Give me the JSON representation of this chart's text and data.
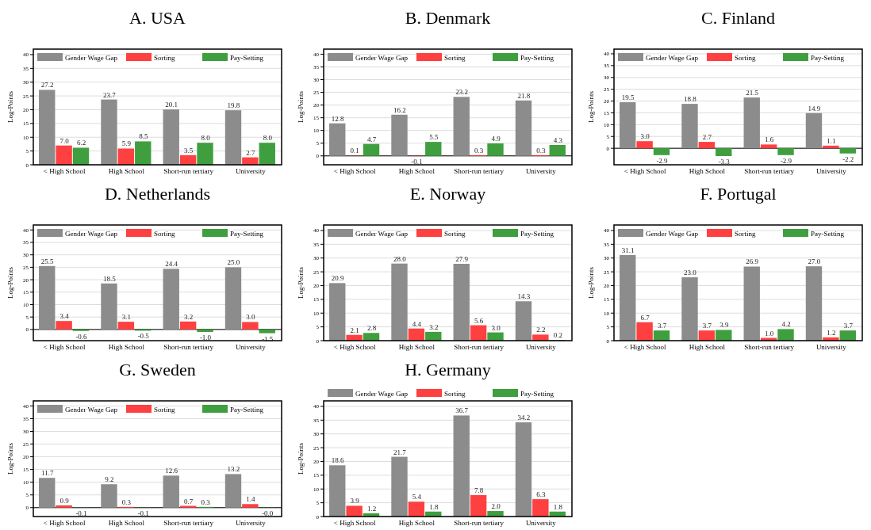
{
  "chart_data": [
    {
      "type": "bar",
      "title": "A. USA",
      "ylabel": "Log-Points",
      "categories": [
        "< High School",
        "High School",
        "Short-run tertiary",
        "University"
      ],
      "ylim": [
        0,
        42
      ],
      "yticks": [
        0,
        5,
        10,
        15,
        20,
        25,
        30,
        35,
        40
      ],
      "grid": "y",
      "legend": "top left",
      "series": [
        {
          "name": "Gender Wage Gap",
          "color": "#8c8c8c",
          "values": [
            27.2,
            23.7,
            20.1,
            19.8
          ],
          "value_labels": [
            "27.2",
            "23.7",
            "20.1",
            "19.8"
          ]
        },
        {
          "name": "Sorting",
          "color": "#ff4040",
          "values": [
            7.0,
            5.9,
            3.5,
            2.7
          ],
          "value_labels": [
            "7.0",
            "5.9",
            "3.5",
            "2.7"
          ]
        },
        {
          "name": "Pay-Setting",
          "color": "#3f9f3f",
          "values": [
            6.2,
            8.5,
            8.0,
            8.0
          ],
          "value_labels": [
            "6.2",
            "8.5",
            "8.0",
            "8.0"
          ]
        }
      ]
    },
    {
      "type": "bar",
      "title": "B. Denmark",
      "ylabel": "Log-Points",
      "categories": [
        "< High School",
        "High School",
        "Short-run tertiary",
        "University"
      ],
      "ylim": [
        -3.5,
        42
      ],
      "yticks": [
        0,
        5,
        10,
        15,
        20,
        25,
        30,
        35,
        40
      ],
      "grid": "y",
      "legend": "top left",
      "series": [
        {
          "name": "Gender Wage Gap",
          "color": "#8c8c8c",
          "values": [
            12.8,
            16.2,
            23.2,
            21.8
          ],
          "value_labels": [
            "12.8",
            "16.2",
            "23.2",
            "21.8"
          ]
        },
        {
          "name": "Sorting",
          "color": "#ff4040",
          "values": [
            0.1,
            -0.1,
            0.3,
            0.3
          ],
          "value_labels": [
            "0.1",
            "-0.1",
            "0.3",
            "0.3"
          ]
        },
        {
          "name": "Pay-Setting",
          "color": "#3f9f3f",
          "values": [
            4.7,
            5.5,
            4.9,
            4.3
          ],
          "value_labels": [
            "4.7",
            "5.5",
            "4.9",
            "4.3"
          ]
        }
      ]
    },
    {
      "type": "bar",
      "title": "C. Finland",
      "ylabel": "Log-Points",
      "categories": [
        "< High School",
        "High School",
        "Short-run tertiary",
        "University"
      ],
      "ylim": [
        -7,
        42
      ],
      "yticks": [
        0,
        5,
        10,
        15,
        20,
        25,
        30,
        35,
        40
      ],
      "grid": "y",
      "legend": "top left",
      "series": [
        {
          "name": "Gender Wage Gap",
          "color": "#8c8c8c",
          "values": [
            19.5,
            18.8,
            21.5,
            14.9
          ],
          "value_labels": [
            "19.5",
            "18.8",
            "21.5",
            "14.9"
          ]
        },
        {
          "name": "Sorting",
          "color": "#ff4040",
          "values": [
            3.0,
            2.7,
            1.6,
            1.1
          ],
          "value_labels": [
            "3.0",
            "2.7",
            "1.6",
            "1.1"
          ]
        },
        {
          "name": "Pay-Setting",
          "color": "#3f9f3f",
          "values": [
            -2.9,
            -3.3,
            -2.9,
            -2.2
          ],
          "value_labels": [
            "-2.9",
            "-3.3",
            "-2.9",
            "-2.2"
          ]
        }
      ]
    },
    {
      "type": "bar",
      "title": "D. Netherlands",
      "ylabel": "Log-Points",
      "categories": [
        "< High School",
        "High School",
        "Short-run tertiary",
        "University"
      ],
      "ylim": [
        -4.5,
        42
      ],
      "yticks": [
        0,
        5,
        10,
        15,
        20,
        25,
        30,
        35,
        40
      ],
      "grid": "y",
      "legend": "top left",
      "series": [
        {
          "name": "Gender Wage Gap",
          "color": "#8c8c8c",
          "values": [
            25.5,
            18.5,
            24.4,
            25.0
          ],
          "value_labels": [
            "25.5",
            "18.5",
            "24.4",
            "25.0"
          ]
        },
        {
          "name": "Sorting",
          "color": "#ff4040",
          "values": [
            3.4,
            3.1,
            3.2,
            3.0
          ],
          "value_labels": [
            "3.4",
            "3.1",
            "3.2",
            "3.0"
          ]
        },
        {
          "name": "Pay-Setting",
          "color": "#3f9f3f",
          "values": [
            -0.6,
            -0.5,
            -1.0,
            -1.5
          ],
          "value_labels": [
            "-0.6",
            "-0.5",
            "-1.0",
            "-1.5"
          ]
        }
      ]
    },
    {
      "type": "bar",
      "title": "E. Norway",
      "ylabel": "Log-Points",
      "categories": [
        "< High School",
        "High School",
        "Short-run tertiary",
        "University"
      ],
      "ylim": [
        0,
        42
      ],
      "yticks": [
        0,
        5,
        10,
        15,
        20,
        25,
        30,
        35,
        40
      ],
      "grid": "y",
      "legend": "top left",
      "series": [
        {
          "name": "Gender Wage Gap",
          "color": "#8c8c8c",
          "values": [
            20.9,
            28.0,
            27.9,
            14.3
          ],
          "value_labels": [
            "20.9",
            "28.0",
            "27.9",
            "14.3"
          ]
        },
        {
          "name": "Sorting",
          "color": "#ff4040",
          "values": [
            2.1,
            4.4,
            5.6,
            2.2
          ],
          "value_labels": [
            "2.1",
            "4.4",
            "5.6",
            "2.2"
          ]
        },
        {
          "name": "Pay-Setting",
          "color": "#3f9f3f",
          "values": [
            2.8,
            3.2,
            3.0,
            0.2
          ],
          "value_labels": [
            "2.8",
            "3.2",
            "3.0",
            "0.2"
          ]
        }
      ]
    },
    {
      "type": "bar",
      "title": "F. Portugal",
      "ylabel": "Log-Points",
      "categories": [
        "< High School",
        "High School",
        "Short-run tertiary",
        "University"
      ],
      "ylim": [
        0,
        42
      ],
      "yticks": [
        0,
        5,
        10,
        15,
        20,
        25,
        30,
        35,
        40
      ],
      "grid": "y",
      "legend": "top left",
      "series": [
        {
          "name": "Gender Wage Gap",
          "color": "#8c8c8c",
          "values": [
            31.1,
            23.0,
            26.9,
            27.0
          ],
          "value_labels": [
            "31.1",
            "23.0",
            "26.9",
            "27.0"
          ]
        },
        {
          "name": "Sorting",
          "color": "#ff4040",
          "values": [
            6.7,
            3.7,
            1.0,
            1.2
          ],
          "value_labels": [
            "6.7",
            "3.7",
            "1.0",
            "1.2"
          ]
        },
        {
          "name": "Pay-Setting",
          "color": "#3f9f3f",
          "values": [
            3.7,
            3.9,
            4.2,
            3.7
          ],
          "value_labels": [
            "3.7",
            "3.9",
            "4.2",
            "3.7"
          ]
        }
      ]
    },
    {
      "type": "bar",
      "title": "G. Sweden",
      "ylabel": "Log-Points",
      "categories": [
        "< High School",
        "High School",
        "Short-run tertiary",
        "University"
      ],
      "ylim": [
        -3.5,
        42
      ],
      "yticks": [
        0,
        5,
        10,
        15,
        20,
        25,
        30,
        35,
        40
      ],
      "grid": "y",
      "legend": "top left",
      "series": [
        {
          "name": "Gender Wage Gap",
          "color": "#8c8c8c",
          "values": [
            11.7,
            9.2,
            12.6,
            13.2
          ],
          "value_labels": [
            "11.7",
            "9.2",
            "12.6",
            "13.2"
          ]
        },
        {
          "name": "Sorting",
          "color": "#ff4040",
          "values": [
            0.9,
            0.3,
            0.7,
            1.4
          ],
          "value_labels": [
            "0.9",
            "0.3",
            "0.7",
            "1.4"
          ]
        },
        {
          "name": "Pay-Setting",
          "color": "#3f9f3f",
          "values": [
            -0.1,
            -0.1,
            0.3,
            -0.04
          ],
          "value_labels": [
            "-0.1",
            "-0.1",
            "0.3",
            "-0.0"
          ]
        }
      ]
    },
    {
      "type": "bar",
      "title": "H. Germany",
      "ylabel": "Log-Points",
      "categories": [
        "< High School",
        "High School",
        "Short-run tertiary",
        "University"
      ],
      "ylim": [
        0,
        42
      ],
      "yticks": [
        0,
        5,
        10,
        15,
        20,
        25,
        30,
        35,
        40
      ],
      "grid": "y",
      "legend": "top",
      "series": [
        {
          "name": "Gender Wage Gap",
          "color": "#8c8c8c",
          "values": [
            18.6,
            21.7,
            36.7,
            34.2
          ],
          "value_labels": [
            "18.6",
            "21.7",
            "36.7",
            "34.2"
          ]
        },
        {
          "name": "Sorting",
          "color": "#ff4040",
          "values": [
            3.9,
            5.4,
            7.8,
            6.3
          ],
          "value_labels": [
            "3.9",
            "5.4",
            "7.8",
            "6.3"
          ]
        },
        {
          "name": "Pay-Setting",
          "color": "#3f9f3f",
          "values": [
            1.2,
            1.8,
            2.0,
            1.8
          ],
          "value_labels": [
            "1.2",
            "1.8",
            "2.0",
            "1.8"
          ]
        }
      ]
    }
  ]
}
